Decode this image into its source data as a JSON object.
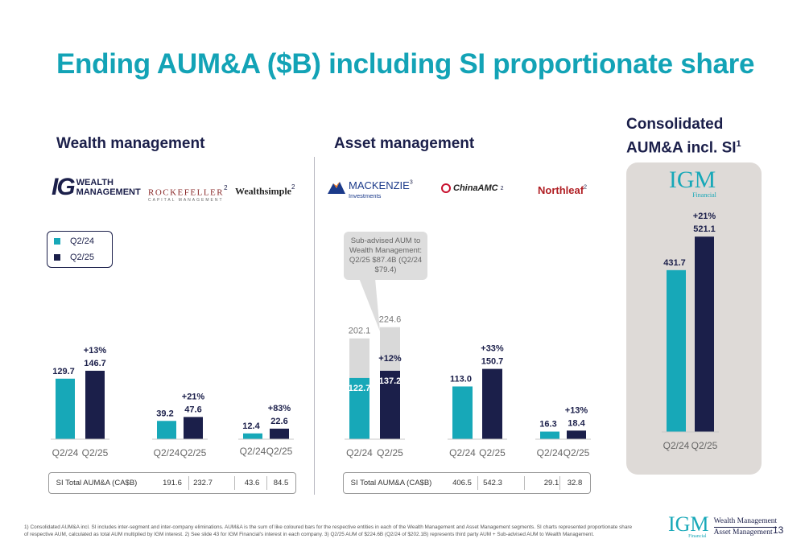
{
  "title": "Ending AUM&A ($B) including SI proportionate share",
  "sections": {
    "wealth": "Wealth management",
    "asset": "Asset management",
    "consolidated_line1": "Consolidated",
    "consolidated_line2": "AUM&A incl. SI",
    "consolidated_sup": "1"
  },
  "logos": {
    "ig_mark": "IG",
    "ig_line1": "WEALTH",
    "ig_line2": "MANAGEMENT",
    "rockefeller": "ROCKEFELLER",
    "rockefeller_sub": "CAPITAL MANAGEMENT",
    "rockefeller_sup": "2",
    "wealthsimple": "Wealthsimple",
    "wealthsimple_sup": "2",
    "mackenzie": "MACKENZIE",
    "mackenzie_sub": "Investments",
    "mackenzie_sup": "3",
    "chinaamc": "ChinaAMC",
    "chinaamc_sup": "2",
    "northleaf": "Northleaf",
    "northleaf_sup": "2",
    "igm_mark": "IGM",
    "igm_sub": "Financial"
  },
  "legend": {
    "a": "Q2/24",
    "b": "Q2/25"
  },
  "callout": "Sub-advised AUM to Wealth Management: Q2/25 $87.4B (Q2/24 $79.4)",
  "colors": {
    "teal": "#17a8b8",
    "navy": "#1b1f4a",
    "grey": "#d9d9d9",
    "title": "#13a3b6"
  },
  "chart_data": {
    "type": "bar",
    "series_labels": [
      "Q2/24",
      "Q2/25"
    ],
    "groups": [
      {
        "name": "IG Wealth Management",
        "values": [
          129.7,
          146.7
        ],
        "labels": [
          "129.7",
          "146.7"
        ],
        "change": "+13%"
      },
      {
        "name": "Rockefeller",
        "values": [
          39.2,
          47.6
        ],
        "labels": [
          "39.2",
          "47.6"
        ],
        "change": "+21%"
      },
      {
        "name": "Wealthsimple",
        "values": [
          12.4,
          22.6
        ],
        "labels": [
          "12.4",
          "22.6"
        ],
        "change": "+83%"
      },
      {
        "name": "Mackenzie",
        "values": [
          122.7,
          137.2
        ],
        "labels": [
          "122.7",
          "137.2"
        ],
        "change": "+12%",
        "totals": [
          202.1,
          224.6
        ],
        "total_labels": [
          "202.1",
          "224.6"
        ]
      },
      {
        "name": "ChinaAMC",
        "values": [
          113.0,
          150.7
        ],
        "labels": [
          "113.0",
          "150.7"
        ],
        "change": "+33%"
      },
      {
        "name": "Northleaf",
        "values": [
          16.3,
          18.4
        ],
        "labels": [
          "16.3",
          "18.4"
        ],
        "change": "+13%"
      },
      {
        "name": "IGM Financial",
        "values": [
          431.7,
          521.1
        ],
        "labels": [
          "431.7",
          "521.1"
        ],
        "change": "+21%"
      }
    ]
  },
  "si_tables": {
    "wealth": {
      "label": "SI Total AUM&A (CA$B)",
      "values": [
        "191.6",
        "232.7",
        "43.6",
        "84.5"
      ]
    },
    "asset": {
      "label": "SI Total AUM&A (CA$B)",
      "values": [
        "406.5",
        "542.3",
        "29.1",
        "32.8"
      ]
    }
  },
  "footnote_line1": "1) Consolidated AUM&A incl. SI includes inter-segment and inter-company eliminations. AUM&A is the sum of like coloured bars for the respective entities in each of the Wealth Management and Asset Management segments. SI charts represented proportionate share",
  "footnote_line2": "of respective AUM, calculated as total AUM multiplied by IGM interest. 2) See slide 43 for IGM Financial's interest in each company. 3) Q2/25 AUM of $224.6B (Q2/24 of $202.1B) represents third party AUM + Sub-advised AUM to Wealth Management.",
  "footer": {
    "logo": "IGM",
    "logo_sub": "Financial",
    "line1": "Wealth Management",
    "line2": "Asset Management",
    "page": "13"
  }
}
